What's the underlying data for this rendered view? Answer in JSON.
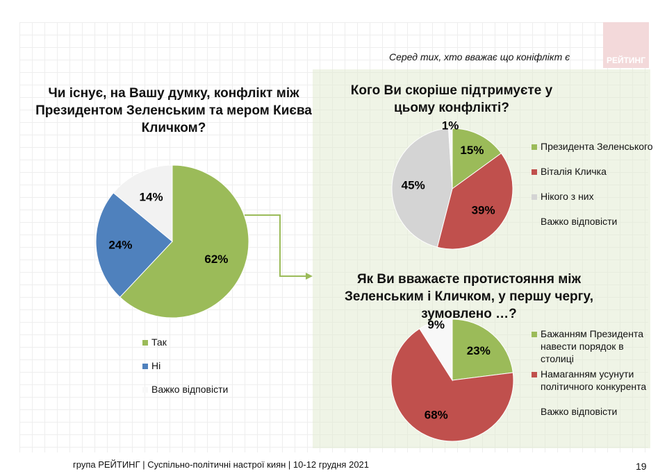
{
  "logo": "РЕЙТИНГ",
  "subtitle": "Серед тих, хто вважає що коніфлікт є",
  "footer": "група РЕЙТИНГ | Суспільно-політичні настрої киян | 10-12 грудня 2021",
  "page_number": "19",
  "chart_data": [
    {
      "type": "pie",
      "title": "Чи існує, на Вашу думку, конфлікт між Президентом Зеленським та мером Києва Кличком?",
      "labels": [
        "Так",
        "Ні",
        "Важко відповісти"
      ],
      "values": [
        62,
        24,
        14
      ],
      "display": [
        "62%",
        "24%",
        "14%"
      ],
      "colors": [
        "#9bbb59",
        "#4f81bd",
        "#f2f2f2"
      ]
    },
    {
      "type": "pie",
      "title": "Кого Ви скоріше підтримуєте у цьому конфлікті?",
      "labels": [
        "Президента Зеленського",
        "Віталія Кличка",
        "Нікого з них",
        "Важко відповісти"
      ],
      "values": [
        15,
        39,
        45,
        1
      ],
      "display": [
        "15%",
        "39%",
        "45%",
        "1%"
      ],
      "colors": [
        "#9bbb59",
        "#c0504d",
        "#d4d4d4",
        "#f8f8f8"
      ]
    },
    {
      "type": "pie",
      "title": "Як Ви вважаєте протистояння між Зеленським і Кличком, у першу чергу, зумовлено …?",
      "labels": [
        "Бажанням Президента навести порядок в столиці",
        "Намаганням усунути політичного конкурента",
        "Важко відповісти"
      ],
      "values": [
        23,
        68,
        9
      ],
      "display": [
        "23%",
        "68%",
        "9%"
      ],
      "colors": [
        "#9bbb59",
        "#c0504d",
        "#f8f8f8"
      ]
    }
  ]
}
